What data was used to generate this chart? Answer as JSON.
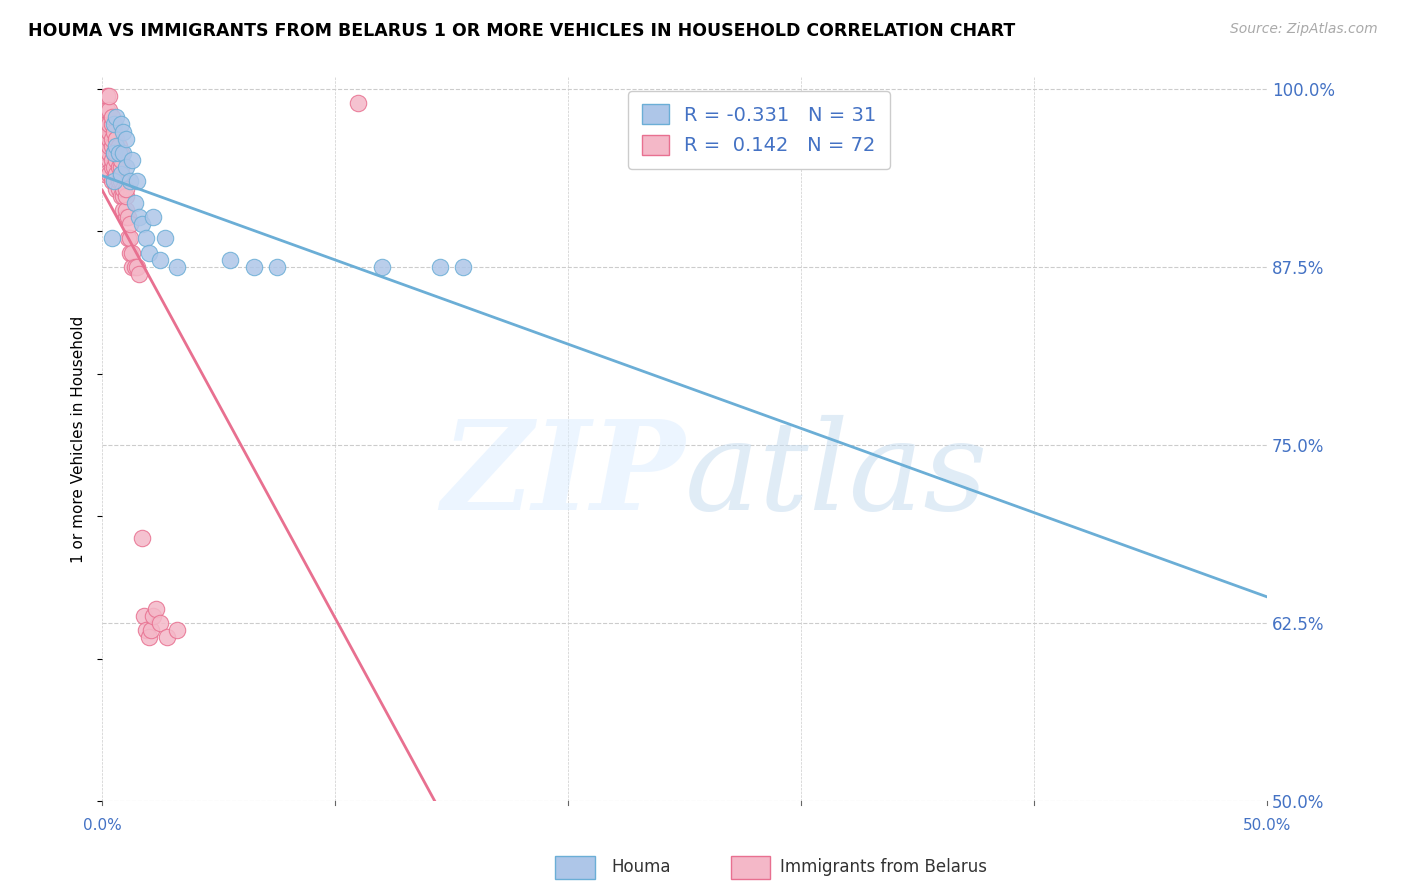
{
  "title": "HOUMA VS IMMIGRANTS FROM BELARUS 1 OR MORE VEHICLES IN HOUSEHOLD CORRELATION CHART",
  "source": "Source: ZipAtlas.com",
  "ylabel": "1 or more Vehicles in Household",
  "xlim": [
    0.0,
    0.5
  ],
  "ylim": [
    0.5,
    1.008
  ],
  "houma_R": -0.331,
  "houma_N": 31,
  "belarus_R": 0.142,
  "belarus_N": 72,
  "houma_color": "#aec6e8",
  "belarus_color": "#f4b8c8",
  "houma_edge_color": "#6baed6",
  "belarus_edge_color": "#e87090",
  "houma_line_color": "#6baed6",
  "belarus_line_color": "#e87090",
  "ytick_vals": [
    0.5,
    0.625,
    0.75,
    0.875,
    1.0
  ],
  "ytick_labels": [
    "50.0%",
    "62.5%",
    "75.0%",
    "87.5%",
    "100.0%"
  ],
  "houma_scatter_x": [
    0.004,
    0.005,
    0.005,
    0.005,
    0.006,
    0.006,
    0.007,
    0.008,
    0.008,
    0.009,
    0.009,
    0.01,
    0.01,
    0.012,
    0.013,
    0.014,
    0.015,
    0.016,
    0.017,
    0.019,
    0.02,
    0.022,
    0.025,
    0.027,
    0.032,
    0.055,
    0.065,
    0.075,
    0.12,
    0.145,
    0.155
  ],
  "houma_scatter_y": [
    0.895,
    0.935,
    0.955,
    0.975,
    0.96,
    0.98,
    0.955,
    0.94,
    0.975,
    0.955,
    0.97,
    0.945,
    0.965,
    0.935,
    0.95,
    0.92,
    0.935,
    0.91,
    0.905,
    0.895,
    0.885,
    0.91,
    0.88,
    0.895,
    0.875,
    0.88,
    0.875,
    0.875,
    0.875,
    0.875,
    0.875
  ],
  "belarus_scatter_x": [
    0.001,
    0.001,
    0.001,
    0.002,
    0.002,
    0.002,
    0.002,
    0.002,
    0.003,
    0.003,
    0.003,
    0.003,
    0.003,
    0.003,
    0.003,
    0.003,
    0.003,
    0.004,
    0.004,
    0.004,
    0.004,
    0.004,
    0.004,
    0.004,
    0.005,
    0.005,
    0.005,
    0.005,
    0.006,
    0.006,
    0.006,
    0.006,
    0.006,
    0.007,
    0.007,
    0.007,
    0.007,
    0.007,
    0.008,
    0.008,
    0.008,
    0.008,
    0.008,
    0.008,
    0.009,
    0.009,
    0.009,
    0.01,
    0.01,
    0.01,
    0.01,
    0.011,
    0.011,
    0.012,
    0.012,
    0.012,
    0.013,
    0.013,
    0.014,
    0.015,
    0.016,
    0.017,
    0.018,
    0.019,
    0.02,
    0.021,
    0.022,
    0.023,
    0.025,
    0.028,
    0.032,
    0.11
  ],
  "belarus_scatter_y": [
    0.94,
    0.96,
    0.975,
    0.955,
    0.965,
    0.975,
    0.985,
    0.995,
    0.94,
    0.95,
    0.955,
    0.96,
    0.965,
    0.97,
    0.975,
    0.985,
    0.995,
    0.935,
    0.945,
    0.95,
    0.96,
    0.965,
    0.975,
    0.98,
    0.935,
    0.945,
    0.955,
    0.97,
    0.93,
    0.94,
    0.95,
    0.955,
    0.965,
    0.93,
    0.935,
    0.945,
    0.955,
    0.96,
    0.925,
    0.935,
    0.94,
    0.945,
    0.95,
    0.955,
    0.915,
    0.925,
    0.93,
    0.91,
    0.915,
    0.925,
    0.93,
    0.895,
    0.91,
    0.885,
    0.895,
    0.905,
    0.875,
    0.885,
    0.875,
    0.875,
    0.87,
    0.685,
    0.63,
    0.62,
    0.615,
    0.62,
    0.63,
    0.635,
    0.625,
    0.615,
    0.62,
    0.99
  ]
}
